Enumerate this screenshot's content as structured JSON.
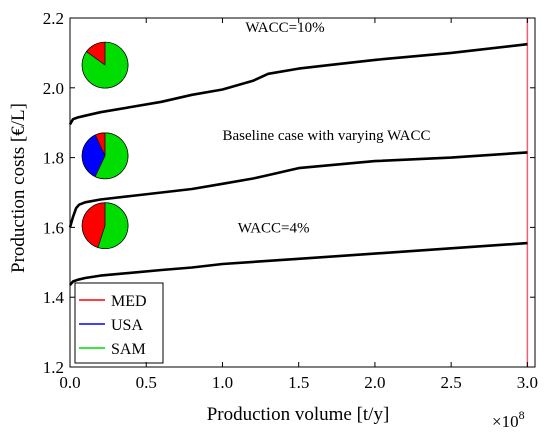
{
  "chart_data": {
    "type": "line",
    "xlabel": "Production volume [t/y]",
    "ylabel": "Production costs [€/L]",
    "x_multiplier": {
      "base": "×10",
      "exponent": "8"
    },
    "xlim": [
      0,
      3.05
    ],
    "ylim": [
      1.2,
      2.2
    ],
    "x_ticks": [
      {
        "value": 0.0,
        "label": "0.0"
      },
      {
        "value": 0.5,
        "label": "0.5"
      },
      {
        "value": 1.0,
        "label": "1.0"
      },
      {
        "value": 1.5,
        "label": "1.5"
      },
      {
        "value": 2.0,
        "label": "2.0"
      },
      {
        "value": 2.5,
        "label": "2.5"
      },
      {
        "value": 3.0,
        "label": "3.0"
      }
    ],
    "y_ticks": [
      {
        "value": 1.2,
        "label": "1.2"
      },
      {
        "value": 1.4,
        "label": "1.4"
      },
      {
        "value": 1.6,
        "label": "1.6"
      },
      {
        "value": 1.8,
        "label": "1.8"
      },
      {
        "value": 2.0,
        "label": "2.0"
      },
      {
        "value": 2.2,
        "label": "2.2"
      }
    ],
    "grid": false,
    "series": [
      {
        "color": "#000000",
        "annotation": "WACC=10%",
        "annotation_at": [
          1.15,
          2.16
        ],
        "x": [
          0.0,
          0.02,
          0.05,
          0.1,
          0.2,
          0.4,
          0.6,
          0.8,
          1.0,
          1.2,
          1.3,
          1.5,
          1.7,
          2.0,
          2.5,
          3.0
        ],
        "y": [
          1.895,
          1.91,
          1.915,
          1.92,
          1.93,
          1.945,
          1.96,
          1.98,
          1.995,
          2.02,
          2.04,
          2.055,
          2.065,
          2.08,
          2.1,
          2.125
        ]
      },
      {
        "color": "#000000",
        "annotation": "Baseline case with varying WACC",
        "annotation_at": [
          1.0,
          1.85
        ],
        "x": [
          0.0,
          0.02,
          0.04,
          0.06,
          0.1,
          0.2,
          0.4,
          0.6,
          0.8,
          1.0,
          1.2,
          1.3,
          1.5,
          2.0,
          2.5,
          3.0
        ],
        "y": [
          1.6,
          1.63,
          1.655,
          1.665,
          1.672,
          1.68,
          1.69,
          1.7,
          1.71,
          1.725,
          1.74,
          1.75,
          1.77,
          1.79,
          1.8,
          1.815
        ]
      },
      {
        "color": "#000000",
        "annotation": "WACC=4%",
        "annotation_at": [
          1.1,
          1.585
        ],
        "x": [
          0.0,
          0.02,
          0.05,
          0.1,
          0.2,
          0.4,
          0.6,
          0.8,
          1.0,
          1.5,
          2.0,
          2.5,
          3.0
        ],
        "y": [
          1.435,
          1.445,
          1.45,
          1.455,
          1.462,
          1.47,
          1.478,
          1.485,
          1.495,
          1.51,
          1.525,
          1.54,
          1.555
        ]
      }
    ],
    "vline": {
      "x": 3.0,
      "color": "#f06070"
    },
    "pies": [
      {
        "center": [
          0.23,
          2.065
        ],
        "slices": [
          {
            "name": "MED",
            "fraction": 0.15
          },
          {
            "name": "USA",
            "fraction": 0.0
          },
          {
            "name": "SAM",
            "fraction": 0.85
          }
        ]
      },
      {
        "center": [
          0.23,
          1.805
        ],
        "slices": [
          {
            "name": "MED",
            "fraction": 0.07
          },
          {
            "name": "USA",
            "fraction": 0.36
          },
          {
            "name": "SAM",
            "fraction": 0.57
          }
        ]
      },
      {
        "center": [
          0.23,
          1.605
        ],
        "slices": [
          {
            "name": "MED",
            "fraction": 0.45
          },
          {
            "name": "USA",
            "fraction": 0.0
          },
          {
            "name": "SAM",
            "fraction": 0.55
          }
        ]
      }
    ],
    "legend": {
      "placement": "bottom-left",
      "entries": [
        {
          "name": "MED",
          "color": "#ff0000"
        },
        {
          "name": "USA",
          "color": "#0000ff"
        },
        {
          "name": "SAM",
          "color": "#00dd00"
        }
      ]
    },
    "slice_colors": {
      "MED": "#ff0000",
      "USA": "#0000ff",
      "SAM": "#00dd00"
    }
  }
}
